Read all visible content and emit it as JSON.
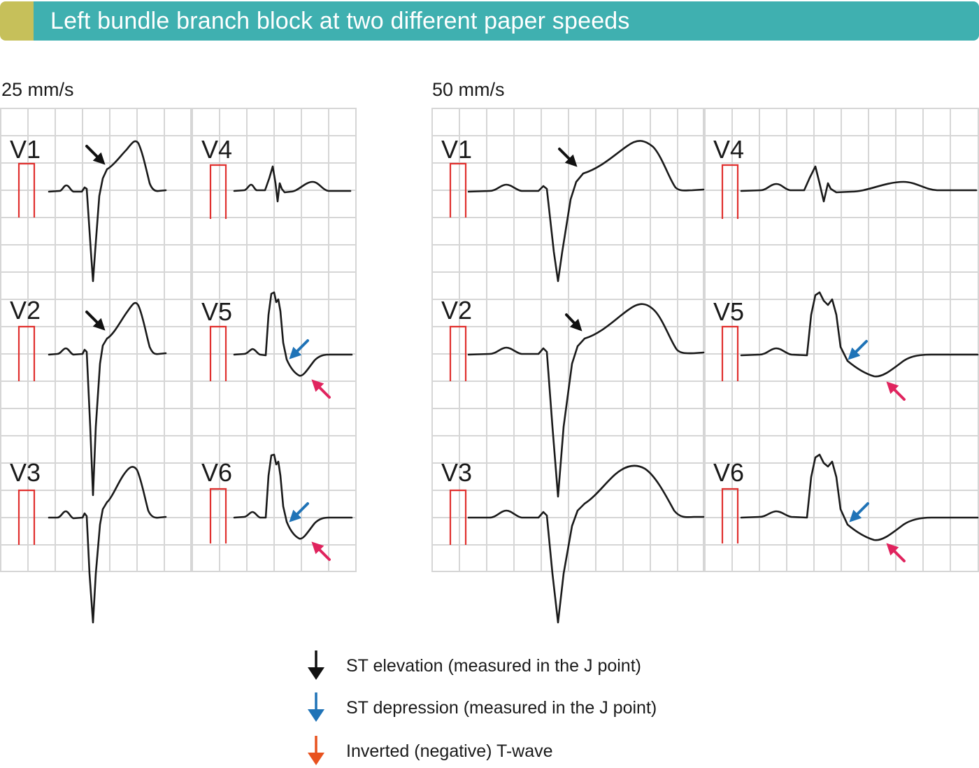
{
  "title": "Left bundle branch block at two different paper speeds",
  "colors": {
    "header_bar": "#3fb0b0",
    "header_accent": "#c6c05a",
    "grid": "#d6d6d6",
    "calibration": "#e0302e",
    "trace": "#1a1a1a",
    "st_elevation_arrow": "#111111",
    "st_depression_arrow": "#1f73b7",
    "inverted_t_arrow_marker": "#e0245e",
    "legend_inverted_t_arrow": "#e8521e"
  },
  "panels": [
    {
      "speed_label": "25 mm/s",
      "leads": [
        "V1",
        "V2",
        "V3",
        "V4",
        "V5",
        "V6"
      ]
    },
    {
      "speed_label": "50 mm/s",
      "leads": [
        "V1",
        "V2",
        "V3",
        "V4",
        "V5",
        "V6"
      ]
    }
  ],
  "legend": [
    {
      "icon": "black-down-arrow-icon",
      "color": "#111111",
      "label": "ST elevation (measured in the J point)"
    },
    {
      "icon": "blue-down-arrow-icon",
      "color": "#1f73b7",
      "label": "ST depression (measured in the J point)"
    },
    {
      "icon": "orange-down-arrow-icon",
      "color": "#e8521e",
      "label": "Inverted (negative) T-wave"
    }
  ]
}
